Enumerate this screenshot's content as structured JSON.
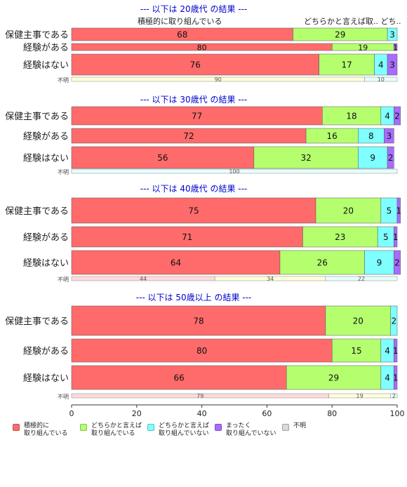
{
  "colors": {
    "positive": "#ff6b6b",
    "somewhat_positive": "#b5ff6f",
    "somewhat_negative": "#7fffff",
    "negative": "#a86cff",
    "unknown": "#d9d9d9",
    "title": "#0000cc"
  },
  "header_labels": {
    "left": "積極的に取り組んでいる",
    "right": "どちらかと言えば取.. どち..",
    "far_right": "不明"
  },
  "chart_data": {
    "type": "bar",
    "orientation": "horizontal-stacked",
    "xlim": [
      0,
      100
    ],
    "x_ticks": [
      "0",
      "20",
      "40",
      "60",
      "80",
      "100"
    ],
    "categories_legend": [
      "積極的に\n取り組んでいる",
      "どちらかと言えば\n取り組んでいる",
      "どちらかと言えば\n取り組んでいない",
      "まったく\n取り組んでいない",
      "不明"
    ],
    "panels": [
      {
        "title": "--- 以下は 20歳代 の結果 ---",
        "rows": [
          {
            "label": "保健主事である",
            "values": [
              68,
              29,
              3,
              0
            ]
          },
          {
            "label": "経験がある",
            "values": [
              80,
              19,
              0,
              1
            ]
          },
          {
            "label": "経験はない",
            "values": [
              76,
              17,
              4,
              3
            ]
          }
        ],
        "unknown_label": "不明",
        "unknown_values": [
          0,
          90,
          10,
          0
        ]
      },
      {
        "title": "--- 以下は 30歳代 の結果 ---",
        "rows": [
          {
            "label": "保健主事である",
            "values": [
              77,
              18,
              4,
              2
            ]
          },
          {
            "label": "経験がある",
            "values": [
              72,
              16,
              8,
              3
            ]
          },
          {
            "label": "経験はない",
            "values": [
              56,
              32,
              9,
              2
            ]
          }
        ],
        "unknown_label": "不明",
        "unknown_values": [
          0,
          0,
          100,
          0
        ]
      },
      {
        "title": "--- 以下は 40歳代 の結果 ---",
        "rows": [
          {
            "label": "保健主事である",
            "values": [
              75,
              20,
              5,
              1
            ]
          },
          {
            "label": "経験がある",
            "values": [
              71,
              23,
              5,
              1
            ]
          },
          {
            "label": "経験はない",
            "values": [
              64,
              26,
              9,
              2
            ]
          }
        ],
        "unknown_label": "不明",
        "unknown_values": [
          44,
          34,
          22,
          0
        ]
      },
      {
        "title": "--- 以下は 50歳以上 の結果 ---",
        "rows": [
          {
            "label": "保健主事である",
            "values": [
              78,
              20,
              2,
              0
            ]
          },
          {
            "label": "経験がある",
            "values": [
              80,
              15,
              4,
              1
            ]
          },
          {
            "label": "経験はない",
            "values": [
              66,
              29,
              4,
              1
            ]
          }
        ],
        "unknown_label": "不明",
        "unknown_values": [
          79,
          19,
          2,
          0
        ]
      }
    ]
  }
}
